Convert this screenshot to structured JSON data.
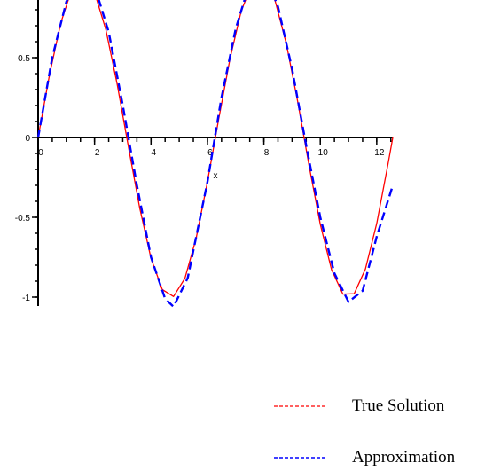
{
  "chart_data": {
    "type": "line",
    "title": "",
    "xlabel": "x",
    "ylabel": "",
    "xlim": [
      0,
      12.57
    ],
    "ylim": [
      -1.05,
      1.0
    ],
    "x_ticks": [
      0,
      2,
      4,
      6,
      8,
      10,
      12
    ],
    "y_ticks": [
      0.5,
      0,
      -0.5,
      -1
    ],
    "x_tick_labels": [
      "0",
      "2",
      "4",
      "6",
      "8",
      "10",
      "12"
    ],
    "y_tick_labels": [
      "0.5",
      "0",
      "-0.5",
      "-1"
    ],
    "grid": false,
    "legend_position": "bottom-right",
    "series": [
      {
        "name": "True Solution",
        "color": "#ff0000",
        "style": "solid",
        "x": [
          0,
          0.4,
          0.8,
          1.2,
          1.6,
          2.0,
          2.4,
          2.8,
          3.2,
          3.6,
          4.0,
          4.4,
          4.8,
          5.2,
          5.6,
          6.0,
          6.4,
          6.8,
          7.2,
          7.6,
          8.0,
          8.4,
          8.8,
          9.2,
          9.6,
          10.0,
          10.4,
          10.8,
          11.2,
          11.6,
          12.0,
          12.4,
          12.57
        ],
        "y": [
          0,
          0.389,
          0.717,
          0.932,
          1.0,
          0.909,
          0.675,
          0.335,
          -0.058,
          -0.443,
          -0.757,
          -0.952,
          -0.996,
          -0.883,
          -0.631,
          -0.279,
          0.117,
          0.494,
          0.794,
          0.968,
          0.989,
          0.855,
          0.585,
          0.223,
          -0.175,
          -0.544,
          -0.828,
          -0.981,
          -0.979,
          -0.824,
          -0.537,
          -0.166,
          0.0
        ]
      },
      {
        "name": "Approximation",
        "color": "#0000ff",
        "style": "dashed",
        "x": [
          0,
          0.5,
          1.0,
          1.5,
          2.0,
          2.5,
          3.0,
          3.5,
          4.0,
          4.5,
          4.8,
          5.3,
          6.0,
          6.5,
          7.0,
          7.5,
          8.0,
          8.5,
          9.0,
          9.5,
          10.0,
          10.5,
          11.0,
          11.5,
          12.0,
          12.57
        ],
        "y": [
          0,
          0.5,
          0.85,
          1.01,
          0.95,
          0.66,
          0.2,
          -0.3,
          -0.75,
          -1.01,
          -1.06,
          -0.88,
          -0.28,
          0.25,
          0.68,
          0.97,
          1.04,
          0.82,
          0.43,
          -0.05,
          -0.5,
          -0.85,
          -1.03,
          -0.96,
          -0.62,
          -0.3
        ]
      }
    ]
  }
}
